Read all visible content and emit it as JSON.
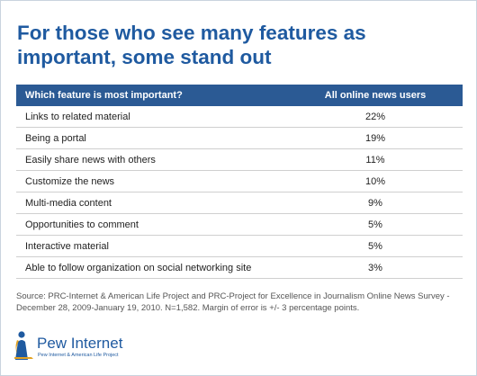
{
  "header": {
    "title": "For those who see many features as important, some stand out"
  },
  "chart_data": {
    "type": "table",
    "columns": [
      "Which feature is most important?",
      "All online news users"
    ],
    "rows": [
      {
        "feature": "Links to related material",
        "value": 22,
        "label": "22%"
      },
      {
        "feature": "Being a portal",
        "value": 19,
        "label": "19%"
      },
      {
        "feature": "Easily share news with others",
        "value": 11,
        "label": "11%"
      },
      {
        "feature": "Customize the news",
        "value": 10,
        "label": "10%"
      },
      {
        "feature": "Multi-media content",
        "value": 9,
        "label": "9%"
      },
      {
        "feature": "Opportunities to comment",
        "value": 5,
        "label": "5%"
      },
      {
        "feature": "Interactive material",
        "value": 5,
        "label": "5%"
      },
      {
        "feature": "Able to follow organization on social networking site",
        "value": 3,
        "label": "3%"
      }
    ]
  },
  "footer": {
    "source": "Source: PRC-Internet & American Life Project and PRC-Project for Excellence in Journalism Online News Survey - December 28, 2009-January 19, 2010. N=1,582. Margin of error is +/- 3 percentage points."
  },
  "logo": {
    "name": "Pew Internet",
    "tagline": "Pew Internet & American Life Project"
  },
  "colors": {
    "title": "#1f5aa0",
    "header_bg": "#2b5a94",
    "row_divider": "#cfcfcf"
  }
}
